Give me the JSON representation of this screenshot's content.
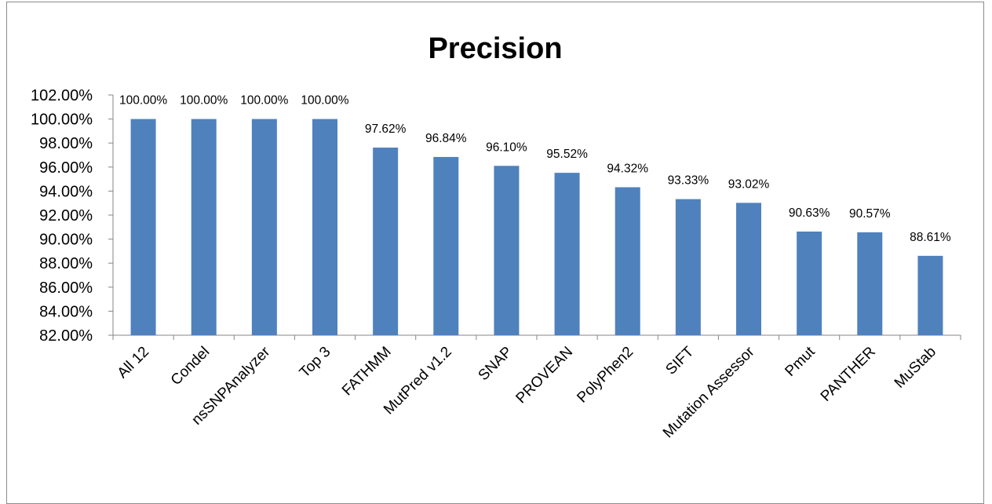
{
  "chart_data": {
    "type": "bar",
    "title": "Precision",
    "xlabel": "",
    "ylabel": "",
    "ylim": [
      82,
      102
    ],
    "ytick_step": 2,
    "ytick_labels": [
      "82.00%",
      "84.00%",
      "86.00%",
      "88.00%",
      "90.00%",
      "92.00%",
      "94.00%",
      "96.00%",
      "98.00%",
      "100.00%",
      "102.00%"
    ],
    "categories": [
      "All 12",
      "Condel",
      "nsSNPAnalyzer",
      "Top 3",
      "FATHMM",
      "MutPred v1.2",
      "SNAP",
      "PROVEAN",
      "PolyPhen2",
      "SIFT",
      "Mutation Assessor",
      "Pmut",
      "PANTHER",
      "MuStab"
    ],
    "values": [
      100.0,
      100.0,
      100.0,
      100.0,
      97.62,
      96.84,
      96.1,
      95.52,
      94.32,
      93.33,
      93.02,
      90.63,
      90.57,
      88.61
    ],
    "data_labels": [
      "100.00%",
      "100.00%",
      "100.00%",
      "100.00%",
      "97.62%",
      "96.84%",
      "96.10%",
      "95.52%",
      "94.32%",
      "93.33%",
      "93.02%",
      "90.63%",
      "90.57%",
      "88.61%"
    ],
    "legend": "none",
    "grid": false,
    "bar_color": "#4f81bd"
  }
}
